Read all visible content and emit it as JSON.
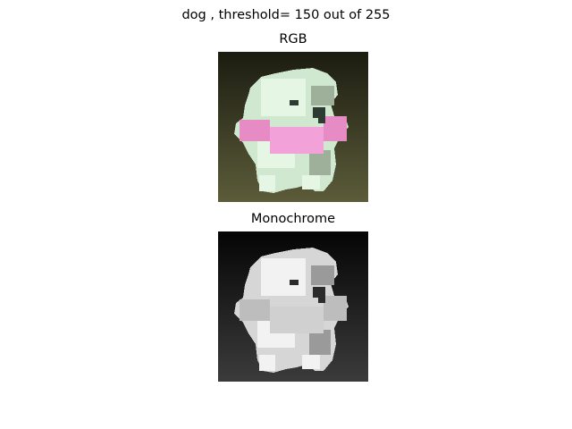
{
  "figure": {
    "title": "dog , threshold= 150 out of 255"
  },
  "panels": [
    {
      "title": "RGB",
      "image": "pixelated-dog-color",
      "colors": {
        "background_top": "#1b1c10",
        "background_bottom": "#5c5c3a",
        "fur": "#cfe8cf",
        "fur_light": "#e6f6e4",
        "fur_shadow": "#9eb09a",
        "harness": "#e78bc4",
        "harness_light": "#f2a2d8",
        "eye": "#2e3b33"
      }
    },
    {
      "title": "Monochrome",
      "image": "pixelated-dog-grayscale",
      "colors": {
        "background_top": "#050505",
        "background_bottom": "#3b3b3b",
        "fur": "#d6d6d6",
        "fur_light": "#f2f2f2",
        "fur_shadow": "#9a9a9a",
        "harness": "#bdbdbd",
        "harness_light": "#d0d0d0",
        "eye": "#2b2b2b"
      }
    }
  ]
}
